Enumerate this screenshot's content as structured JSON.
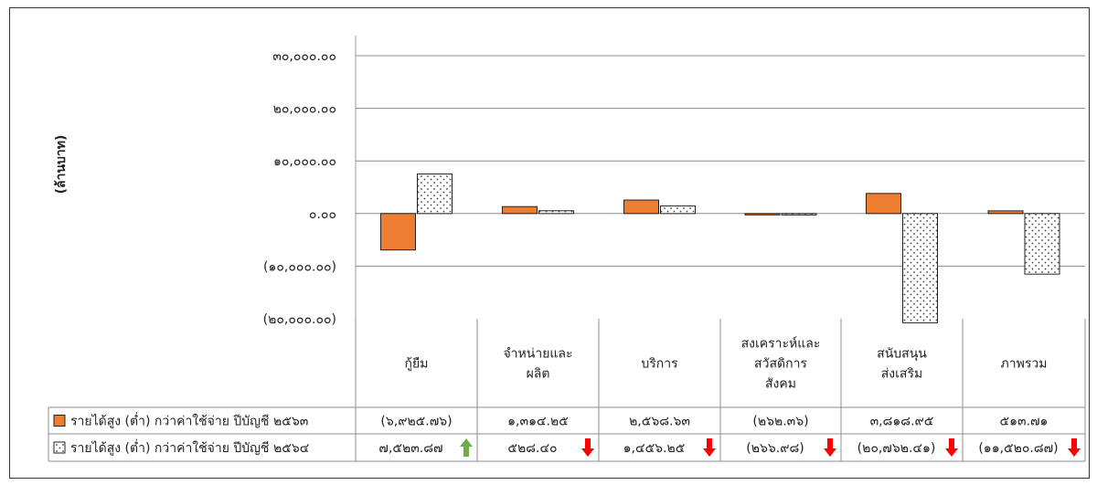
{
  "chart_data": {
    "type": "bar",
    "ylabel": "(ล้านบาท)",
    "ylim": [
      -20000,
      30000
    ],
    "yticks": [
      30000,
      20000,
      10000,
      0,
      -10000,
      -20000
    ],
    "ytick_labels": [
      "๓๐,๐๐๐.๐๐",
      "๒๐,๐๐๐.๐๐",
      "๑๐,๐๐๐.๐๐",
      "๐.๐๐",
      "(๑๐,๐๐๐.๐๐)",
      "(๒๐,๐๐๐.๐๐)"
    ],
    "categories": [
      [
        "กู้ยืม"
      ],
      [
        "จำหน่ายและ",
        "ผลิต"
      ],
      [
        "บริการ"
      ],
      [
        "สงเคราะห์และ",
        "สวัสดิการ",
        "สังคม"
      ],
      [
        "สนับสนุน",
        "ส่งเสริม"
      ],
      [
        "ภาพรวม"
      ]
    ],
    "series": [
      {
        "name": "รายได้สูง (ต่ำ) กว่าค่าใช้จ่าย ปีบัญชี ๒๕๖๓",
        "values": [
          -6925.76,
          1314.25,
          2568.63,
          -262.36,
          3818.95,
          513.71
        ],
        "labels": [
          "(๖,๙๒๕.๗๖)",
          "๑,๓๑๔.๒๕",
          "๒,๕๖๘.๖๓",
          "(๒๖๒.๓๖)",
          "๓,๘๑๘.๙๕",
          "๕๑๓.๗๑"
        ],
        "color": "#ED7D31",
        "pattern": "solid"
      },
      {
        "name": "รายได้สูง (ต่ำ) กว่าค่าใช้จ่าย ปีบัญชี ๒๕๖๔",
        "values": [
          7523.87,
          528.4,
          1456.25,
          -266.98,
          -20762.41,
          -11520.87
        ],
        "labels": [
          "๗,๕๒๓.๘๗",
          "๕๒๘.๔๐",
          "๑,๔๕๖.๒๕",
          "(๒๖๖.๙๘)",
          "(๒๐,๗๖๒.๔๑)",
          "(๑๑,๕๒๐.๘๗)"
        ],
        "color": "#FFFFFF",
        "pattern": "dotted",
        "trend": [
          "up",
          "down",
          "down",
          "down",
          "down",
          "down"
        ]
      }
    ],
    "trend_colors": {
      "up": "#70AD47",
      "down": "#FF0000"
    },
    "grid": true,
    "legend": "table-below"
  }
}
